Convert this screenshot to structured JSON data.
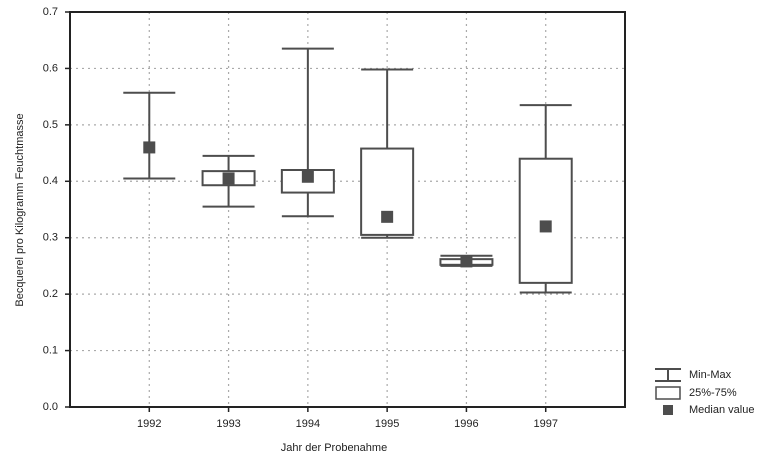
{
  "chart_data": {
    "type": "boxplot",
    "ylabel": "Becquerel pro Kilogramm Feuchtmasse",
    "xlabel": "Jahr der Probenahme",
    "x": [
      1992,
      1993,
      1994,
      1995,
      1996,
      1997
    ],
    "max": [
      0.557,
      0.445,
      0.635,
      0.598,
      0.268,
      0.535
    ],
    "min": [
      0.405,
      0.355,
      0.338,
      0.3,
      0.25,
      0.203
    ],
    "q3": [
      null,
      0.418,
      0.42,
      0.458,
      0.262,
      0.44
    ],
    "q1": [
      null,
      0.393,
      0.38,
      0.305,
      0.252,
      0.22
    ],
    "median": [
      0.46,
      0.405,
      0.408,
      0.337,
      0.258,
      0.32
    ],
    "color": "#4d4d4d",
    "xlim": [
      1991,
      1998
    ],
    "xticks": [
      1992,
      1993,
      1994,
      1995,
      1996,
      1997
    ],
    "ylim": [
      0,
      0.7
    ],
    "yticks": [
      {
        "value": 0,
        "label": "0.0"
      },
      0.1,
      0.2,
      0.3,
      0.4,
      0.5,
      0.6,
      0.7
    ],
    "grid": true,
    "legend": [
      "Min-Max",
      "25%-75%",
      "Median value"
    ]
  }
}
